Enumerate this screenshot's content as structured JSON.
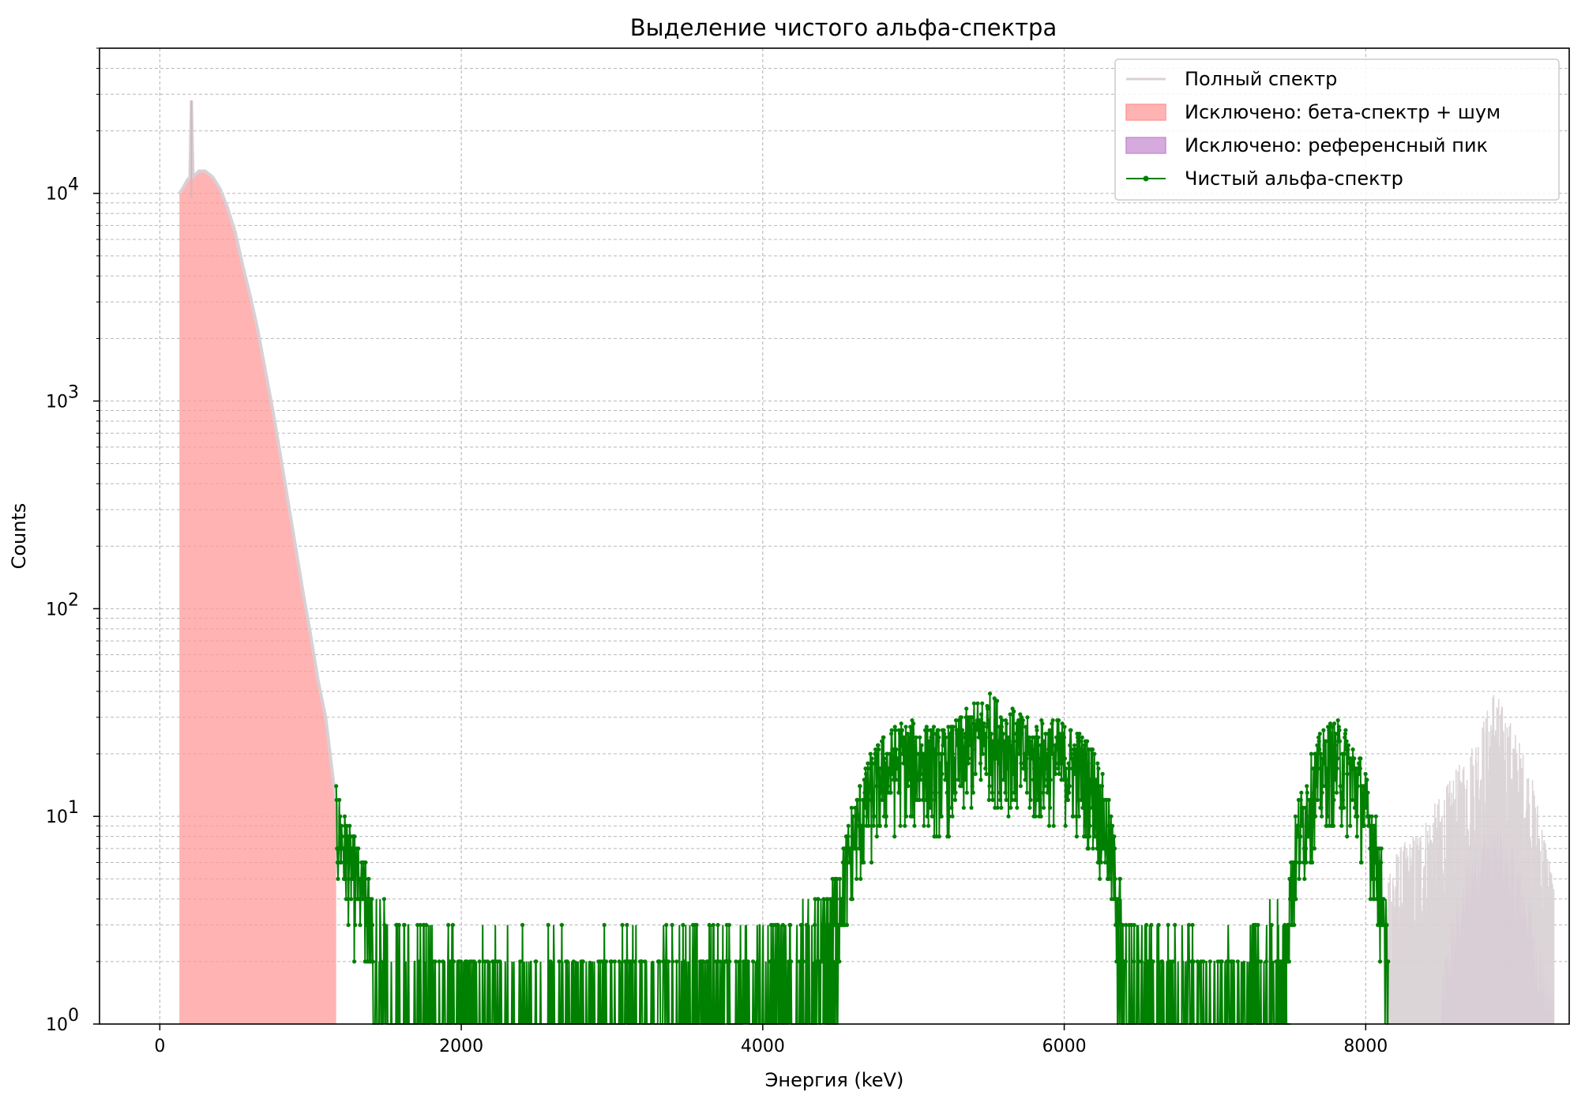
{
  "chart_data": {
    "type": "line",
    "title": "Выделение чистого альфа-спектра",
    "xlabel": "Энергия (keV)",
    "ylabel": "Counts",
    "y_scale": "log",
    "xlim": [
      -400,
      9350
    ],
    "ylim": [
      1,
      50000
    ],
    "x_ticks": [
      0,
      2000,
      4000,
      6000,
      8000
    ],
    "x_tick_labels": [
      "0",
      "2000",
      "4000",
      "6000",
      "8000"
    ],
    "y_ticks": [
      1,
      10,
      100,
      1000,
      10000
    ],
    "y_tick_labels": [
      {
        "base": "10",
        "exp": "0"
      },
      {
        "base": "10",
        "exp": "1"
      },
      {
        "base": "10",
        "exp": "2"
      },
      {
        "base": "10",
        "exp": "3"
      },
      {
        "base": "10",
        "exp": "4"
      }
    ],
    "grid": true,
    "legend_position": "top-right",
    "series": [
      {
        "name": "Полный спектр",
        "style": "line",
        "color": "#d8d0d4",
        "points": [
          [
            130,
            10000
          ],
          [
            150,
            10500
          ],
          [
            180,
            11500
          ],
          [
            200,
            12000
          ],
          [
            210,
            28000
          ],
          [
            220,
            12000
          ],
          [
            260,
            12800
          ],
          [
            300,
            12800
          ],
          [
            350,
            12000
          ],
          [
            400,
            10500
          ],
          [
            450,
            8500
          ],
          [
            500,
            6500
          ],
          [
            550,
            4500
          ],
          [
            600,
            3200
          ],
          [
            650,
            2200
          ],
          [
            700,
            1400
          ],
          [
            750,
            900
          ],
          [
            800,
            550
          ],
          [
            850,
            330
          ],
          [
            900,
            200
          ],
          [
            950,
            120
          ],
          [
            1000,
            75
          ],
          [
            1050,
            45
          ],
          [
            1100,
            30
          ],
          [
            1150,
            15
          ],
          [
            1200,
            8
          ],
          [
            8150,
            4
          ],
          [
            8300,
            5
          ],
          [
            8500,
            8
          ],
          [
            8700,
            14
          ],
          [
            8800,
            20
          ],
          [
            8850,
            27
          ],
          [
            8900,
            22
          ],
          [
            9000,
            16
          ],
          [
            9100,
            10
          ],
          [
            9200,
            5
          ],
          [
            9250,
            3
          ]
        ]
      },
      {
        "name": "Исключено: бета-спектр + шум",
        "style": "fill",
        "color": "#ff9a9a",
        "range": [
          130,
          1170
        ],
        "points": [
          [
            130,
            10000
          ],
          [
            150,
            10500
          ],
          [
            180,
            11500
          ],
          [
            200,
            12000
          ],
          [
            260,
            12800
          ],
          [
            300,
            12800
          ],
          [
            350,
            12000
          ],
          [
            400,
            10500
          ],
          [
            450,
            8500
          ],
          [
            500,
            6500
          ],
          [
            550,
            4500
          ],
          [
            600,
            3200
          ],
          [
            650,
            2200
          ],
          [
            700,
            1400
          ],
          [
            750,
            900
          ],
          [
            800,
            550
          ],
          [
            850,
            330
          ],
          [
            900,
            200
          ],
          [
            950,
            120
          ],
          [
            1000,
            75
          ],
          [
            1050,
            45
          ],
          [
            1100,
            28
          ],
          [
            1150,
            15
          ],
          [
            1170,
            10
          ]
        ]
      },
      {
        "name": "Исключено: референсный пик",
        "style": "fill",
        "color": "#c78fd2",
        "range": [
          8500,
          9250
        ],
        "points": [
          [
            8500,
            1.3
          ],
          [
            8550,
            2
          ],
          [
            8600,
            3
          ],
          [
            8650,
            4
          ],
          [
            8700,
            5.5
          ],
          [
            8750,
            6.5
          ],
          [
            8800,
            7
          ],
          [
            8850,
            7.2
          ],
          [
            8900,
            7
          ],
          [
            8950,
            6
          ],
          [
            9000,
            5
          ],
          [
            9050,
            4
          ],
          [
            9100,
            3
          ],
          [
            9150,
            2
          ],
          [
            9200,
            1.5
          ],
          [
            9250,
            1.2
          ]
        ]
      },
      {
        "name": "Чистый альфа-спектр",
        "style": "line-marker",
        "color": "#008000",
        "segments": [
          {
            "x_start": 1170,
            "x_end": 4500,
            "envelope": [
              [
                1170,
                12
              ],
              [
                1250,
                8
              ],
              [
                1350,
                5
              ],
              [
                1500,
                3
              ],
              [
                2000,
                2
              ],
              [
                3000,
                2
              ],
              [
                4000,
                2.5
              ],
              [
                4300,
                3
              ],
              [
                4500,
                3.5
              ]
            ]
          },
          {
            "x_start": 4400,
            "x_end": 6400,
            "envelope": [
              [
                4400,
                3
              ],
              [
                4500,
                5
              ],
              [
                4600,
                10
              ],
              [
                4700,
                16
              ],
              [
                4800,
                21
              ],
              [
                4900,
                24
              ],
              [
                5000,
                24
              ],
              [
                5100,
                23
              ],
              [
                5200,
                22
              ],
              [
                5300,
                25
              ],
              [
                5400,
                30
              ],
              [
                5500,
                33
              ],
              [
                5600,
                30
              ],
              [
                5700,
                26
              ],
              [
                5800,
                24
              ],
              [
                5900,
                25
              ],
              [
                6000,
                24
              ],
              [
                6100,
                22
              ],
              [
                6200,
                18
              ],
              [
                6300,
                10
              ],
              [
                6400,
                3
              ]
            ]
          },
          {
            "x_start": 6350,
            "x_end": 7500,
            "envelope": [
              [
                6350,
                3
              ],
              [
                6500,
                2.5
              ],
              [
                6800,
                2
              ],
              [
                7000,
                2
              ],
              [
                7200,
                2
              ],
              [
                7350,
                3
              ],
              [
                7500,
                3
              ]
            ]
          },
          {
            "x_start": 7450,
            "x_end": 8150,
            "envelope": [
              [
                7450,
                3
              ],
              [
                7550,
                10
              ],
              [
                7650,
                18
              ],
              [
                7750,
                24
              ],
              [
                7850,
                24
              ],
              [
                7950,
                18
              ],
              [
                8050,
                10
              ],
              [
                8120,
                5
              ],
              [
                8150,
                2
              ]
            ]
          }
        ]
      }
    ]
  }
}
